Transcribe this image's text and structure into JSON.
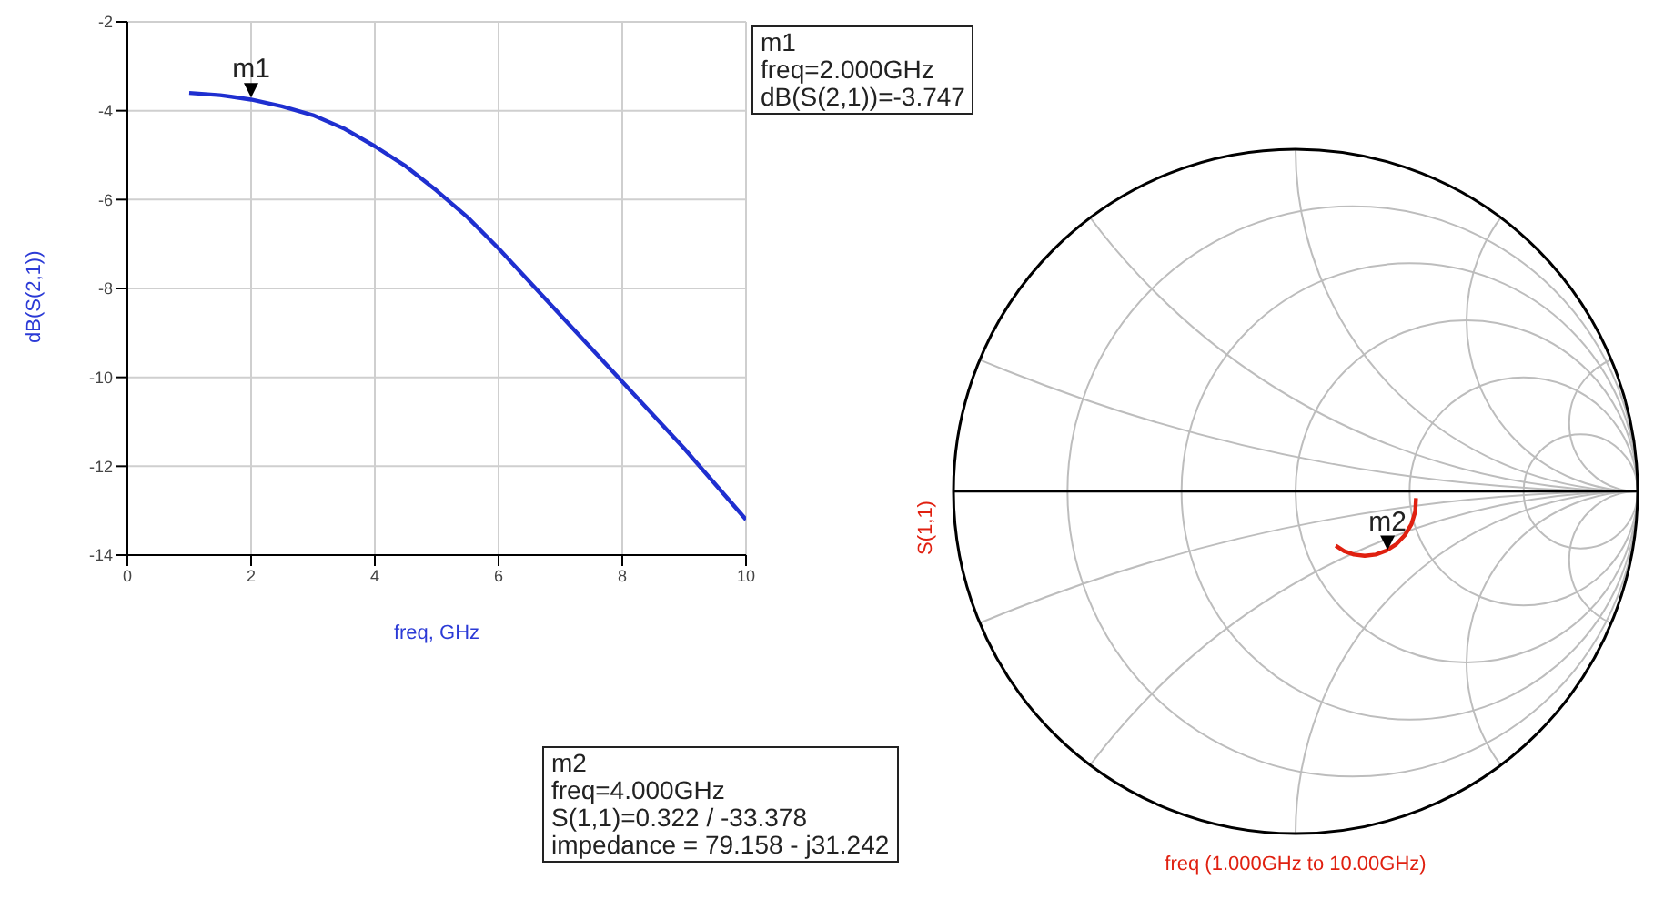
{
  "chart_data": [
    {
      "type": "line",
      "xlabel": "freq, GHz",
      "ylabel": "dB(S(2,1))",
      "x": [
        1,
        1.5,
        2,
        2.5,
        3,
        3.5,
        4,
        4.5,
        5,
        5.5,
        6,
        7,
        8,
        9,
        10
      ],
      "series": [
        {
          "color": "#1f2fd0",
          "values": [
            -3.6,
            -3.65,
            -3.75,
            -3.9,
            -4.1,
            -4.4,
            -4.8,
            -5.25,
            -5.8,
            -6.4,
            -7.1,
            -8.6,
            -10.1,
            -11.6,
            -13.2
          ]
        }
      ],
      "xlim": [
        0,
        10
      ],
      "xticks": [
        0,
        2,
        4,
        6,
        8,
        10
      ],
      "ylim": [
        -14,
        -2
      ],
      "yticks": [
        -14,
        -12,
        -10,
        -8,
        -6,
        -4,
        -2
      ],
      "grid": true,
      "marker": "none",
      "annotations": [
        {
          "text": "m1",
          "x": 2,
          "y": -3.747
        },
        "m1\nfreq=2.000GHz\ndB(S(2,1))=-3.747"
      ]
    },
    {
      "type": "other",
      "ylabel": "S(1,1)",
      "xlabel": "freq (1.000GHz to 10.00GHz)",
      "annotations": [
        "m2",
        "m2\nfreq=4.000GHz\nS(1,1)=0.322 / -33.378\nimpedance = 79.158 - j31.242"
      ]
    }
  ]
}
